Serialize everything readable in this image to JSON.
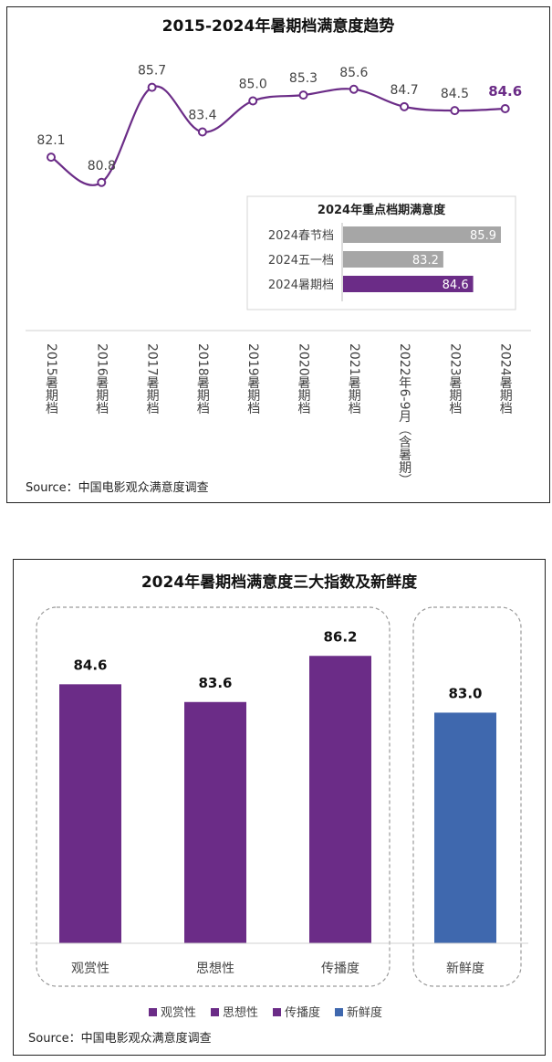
{
  "chart_data": [
    {
      "type": "line",
      "title": "2015-2024年暑期档满意度趋势",
      "categories": [
        "2015暑期档",
        "2016暑期档",
        "2017暑期档",
        "2018暑期档",
        "2019暑期档",
        "2020暑期档",
        "2021暑期档",
        "2022年6-9月（含暑期）",
        "2023暑期档",
        "2024暑期档"
      ],
      "values": [
        82.1,
        80.8,
        85.7,
        83.4,
        85.0,
        85.3,
        85.6,
        84.7,
        84.5,
        84.6
      ],
      "value_labels": [
        "82.1",
        "80.8",
        "85.7",
        "83.4",
        "85.0",
        "85.3",
        "85.6",
        "84.7",
        "84.5",
        "84.6"
      ],
      "ylim": [
        79,
        87
      ],
      "line_color": "#6B2C87",
      "highlight_index": 9,
      "grid": false,
      "source": "Source：中国电影观众满意度调查",
      "inset": {
        "type": "bar",
        "orientation": "horizontal",
        "title": "2024年重点档期满意度",
        "categories": [
          "2024春节档",
          "2024五一档",
          "2024暑期档"
        ],
        "values": [
          85.9,
          83.2,
          84.6
        ],
        "value_labels": [
          "85.9",
          "83.2",
          "84.6"
        ],
        "xlim": [
          78.5,
          86.2
        ],
        "colors": [
          "#A6A6A6",
          "#A6A6A6",
          "#6B2C87"
        ]
      }
    },
    {
      "type": "bar",
      "title": "2024年暑期档满意度三大指数及新鲜度",
      "categories": [
        "观赏性",
        "思想性",
        "传播度",
        "新鲜度"
      ],
      "values": [
        84.6,
        83.6,
        86.2,
        83.0
      ],
      "value_labels": [
        "84.6",
        "83.6",
        "86.2",
        "83.0"
      ],
      "colors": [
        "#6B2C87",
        "#6B2C87",
        "#6B2C87",
        "#3F68AE"
      ],
      "ylim": [
        70,
        87.5
      ],
      "legend": {
        "position": "bottom",
        "entries": [
          {
            "name": "观赏性",
            "color": "#6B2C87"
          },
          {
            "name": "思想性",
            "color": "#6B2C87"
          },
          {
            "name": "传播度",
            "color": "#6B2C87"
          },
          {
            "name": "新鲜度",
            "color": "#3F68AE"
          }
        ]
      },
      "grid": false,
      "source": "Source：中国电影观众满意度调查"
    }
  ]
}
